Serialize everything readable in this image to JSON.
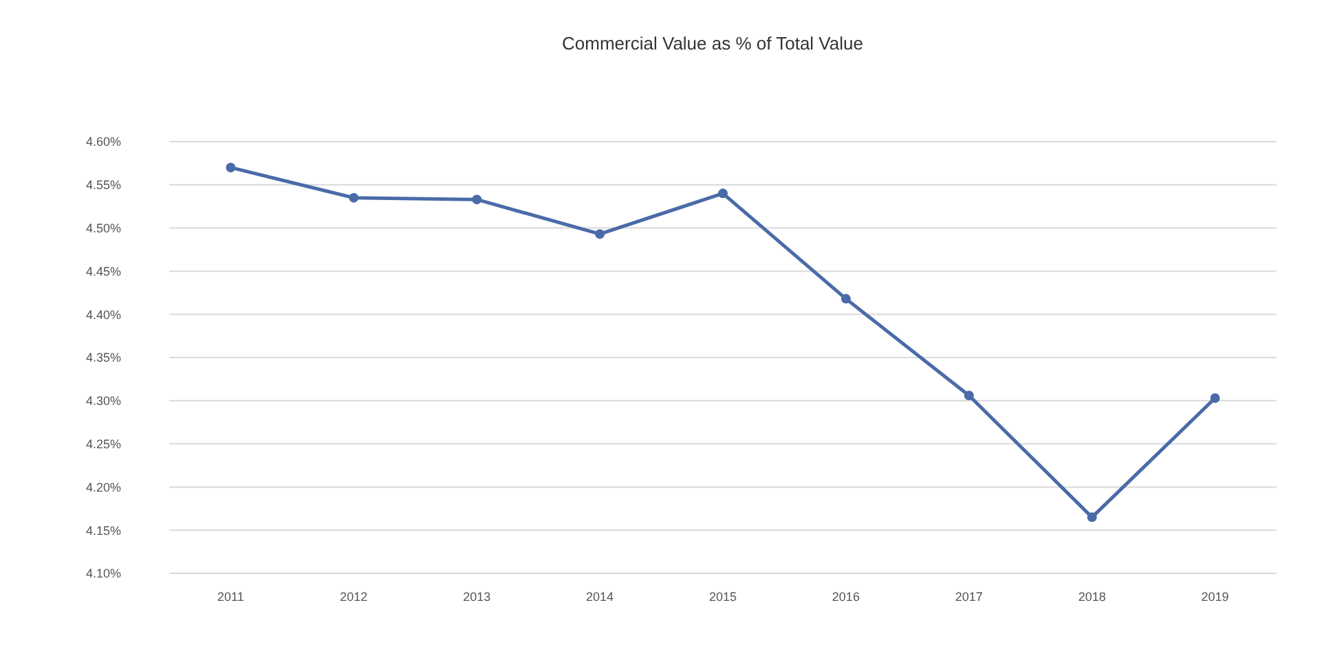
{
  "chart_data": {
    "type": "line",
    "title": "Commercial Value as % of Total Value",
    "categories": [
      "2011",
      "2012",
      "2013",
      "2014",
      "2015",
      "2016",
      "2017",
      "2018",
      "2019"
    ],
    "series": [
      {
        "color": "#4a6ba8",
        "values": [
          4.57,
          4.535,
          4.533,
          4.493,
          4.54,
          4.418,
          4.306,
          4.165,
          4.303
        ]
      }
    ],
    "ylim": [
      4.1,
      4.6
    ],
    "yticks": [
      {
        "value": 4.1,
        "label": "4.10%"
      },
      {
        "value": 4.15,
        "label": "4.15%"
      },
      {
        "value": 4.2,
        "label": "4.20%"
      },
      {
        "value": 4.25,
        "label": "4.25%"
      },
      {
        "value": 4.3,
        "label": "4.30%"
      },
      {
        "value": 4.35,
        "label": "4.35%"
      },
      {
        "value": 4.4,
        "label": "4.40%"
      },
      {
        "value": 4.45,
        "label": "4.45%"
      },
      {
        "value": 4.5,
        "label": "4.50%"
      },
      {
        "value": 4.55,
        "label": "4.55%"
      },
      {
        "value": 4.6,
        "label": "4.60%"
      }
    ],
    "grid": "y",
    "marker": "circle",
    "line_style": "solid"
  }
}
